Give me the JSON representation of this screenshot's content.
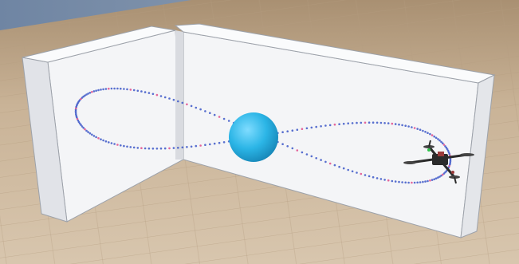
{
  "scene": {
    "sky_color": "#7f92ad",
    "floor_color": "#c9b397",
    "wall_color": "#f4f5f7",
    "wall_shadow": "#d9dbe0",
    "ball_color": "#2bb5e6",
    "trajectory_color": "#3c57c8",
    "drone": {
      "body_color": "#2b2b2b",
      "accent_color": "#9b3b3b",
      "led_color": "#2fc24b"
    }
  }
}
